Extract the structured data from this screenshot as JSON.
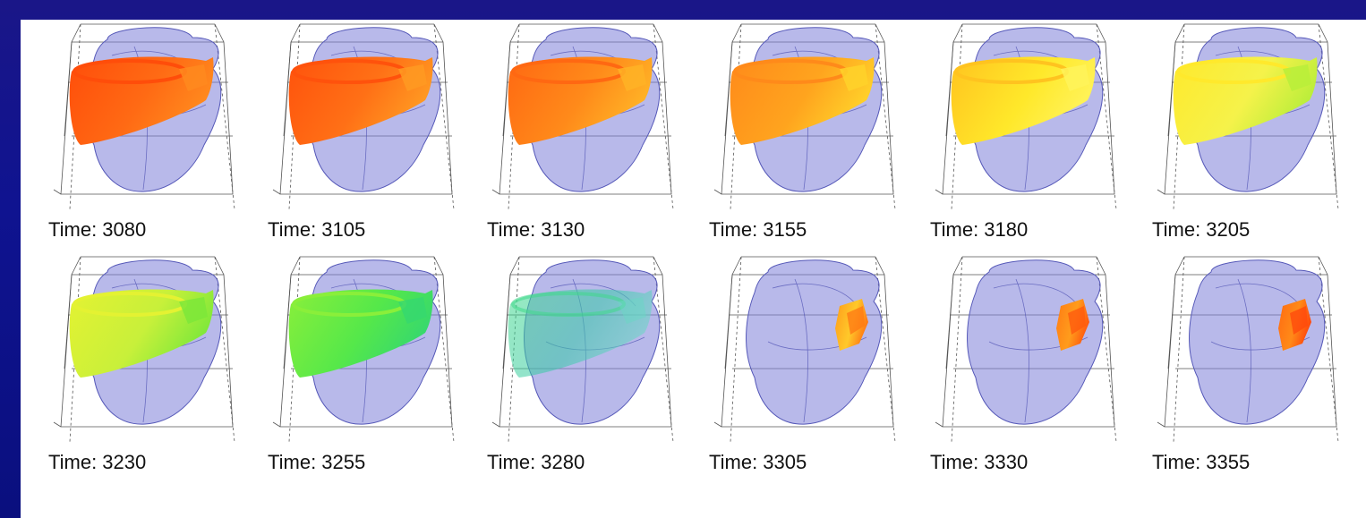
{
  "colors": {
    "background": "#13158a",
    "panel": "#ffffff",
    "shell": "#7d7fd9",
    "box": "#555555"
  },
  "frames": [
    {
      "label": "Time: 3080",
      "wave": "full",
      "colors": [
        "#ff4d0a",
        "#ff6a14",
        "#ff8a1e"
      ]
    },
    {
      "label": "Time: 3105",
      "wave": "full",
      "colors": [
        "#ff520c",
        "#ff7016",
        "#ff9a22"
      ]
    },
    {
      "label": "Time: 3130",
      "wave": "full",
      "colors": [
        "#ff6812",
        "#ff8a1a",
        "#ffb326"
      ]
    },
    {
      "label": "Time: 3155",
      "wave": "full",
      "colors": [
        "#ff8a1a",
        "#ffa41e",
        "#ffd22a"
      ]
    },
    {
      "label": "Time: 3180",
      "wave": "full",
      "colors": [
        "#ffc31f",
        "#ffe82a",
        "#fff35a"
      ]
    },
    {
      "label": "Time: 3205",
      "wave": "full",
      "colors": [
        "#ffe92c",
        "#f5f24a",
        "#b8ee3a"
      ]
    },
    {
      "label": "Time: 3230",
      "wave": "full",
      "colors": [
        "#e4f232",
        "#c8f03a",
        "#7de83a"
      ]
    },
    {
      "label": "Time: 3255",
      "wave": "full",
      "colors": [
        "#8aef3a",
        "#55e84a",
        "#36d86e"
      ]
    },
    {
      "label": "Time: 3280",
      "wave": "fade",
      "colors": [
        "#3fd88a",
        "#38c9a8",
        "#6ad8c4"
      ]
    },
    {
      "label": "Time: 3305",
      "wave": "small",
      "colors": [
        "#ff9a1a",
        "#ffc92a",
        "#ff7a14"
      ]
    },
    {
      "label": "Time: 3330",
      "wave": "small",
      "colors": [
        "#ff7a14",
        "#ff9c1c",
        "#ff5a0e"
      ]
    },
    {
      "label": "Time: 3355",
      "wave": "small",
      "colors": [
        "#ff6a12",
        "#ff8a18",
        "#ff4a0c"
      ]
    }
  ]
}
